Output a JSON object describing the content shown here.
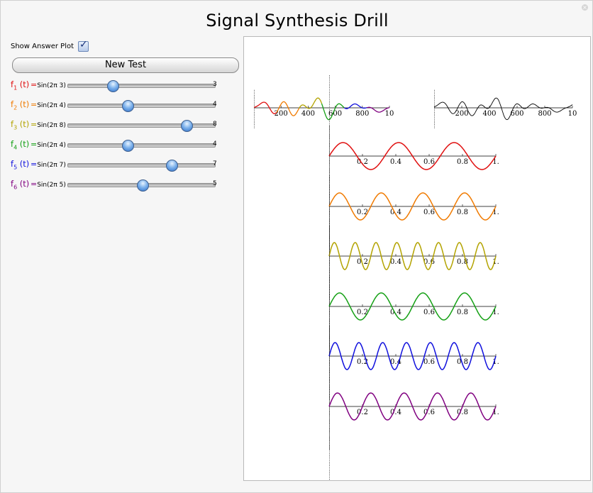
{
  "window": {
    "title": "Signal Synthesis Drill"
  },
  "controls": {
    "show_answer_label": "Show Answer Plot",
    "show_answer_checked": true,
    "new_test_label": "New Test"
  },
  "sliders": [
    {
      "label": "f",
      "sub": "1",
      "arg": "(t)",
      "formula": "Sin(2π  3)",
      "value": 3,
      "min": 0,
      "max": 10,
      "color": "#e01010"
    },
    {
      "label": "f",
      "sub": "2",
      "arg": "(t)",
      "formula": "Sin(2π  4)",
      "value": 4,
      "min": 0,
      "max": 10,
      "color": "#f07a00"
    },
    {
      "label": "f",
      "sub": "3",
      "arg": "(t)",
      "formula": "Sin(2π  8)",
      "value": 8,
      "min": 0,
      "max": 10,
      "color": "#b3a300"
    },
    {
      "label": "f",
      "sub": "4",
      "arg": "(t)",
      "formula": "Sin(2π  4)",
      "value": 4,
      "min": 0,
      "max": 10,
      "color": "#14a014"
    },
    {
      "label": "f",
      "sub": "5",
      "arg": "(t)",
      "formula": "Sin(2π  7)",
      "value": 7,
      "min": 0,
      "max": 10,
      "color": "#1010dd"
    },
    {
      "label": "f",
      "sub": "6",
      "arg": "(t)",
      "formula": "Sin(2π  5)",
      "value": 5,
      "min": 0,
      "max": 10,
      "color": "#800080"
    }
  ],
  "colors": {
    "f1": "#e01010",
    "f2": "#f07a00",
    "f3": "#b3a300",
    "f4": "#14a014",
    "f5": "#1010dd",
    "f6": "#800080",
    "answer": "#000000"
  },
  "equals_sign": "=",
  "chart_data": [
    {
      "type": "line",
      "ticks": [
        "200",
        "400",
        "600",
        "800",
        "10"
      ],
      "x_range": [
        0,
        1000
      ]
    },
    {
      "type": "line",
      "ticks": [
        "200",
        "400",
        "600",
        "800",
        "10"
      ],
      "x_range": [
        0,
        1000
      ]
    },
    {
      "type": "line",
      "frequency": 3,
      "ticks": [
        "0.2",
        "0.4",
        "0.6",
        "0.8",
        "1."
      ],
      "x_range": [
        0,
        1
      ],
      "y_range": [
        -1,
        1
      ]
    },
    {
      "type": "line",
      "frequency": 4,
      "ticks": [
        "0.2",
        "0.4",
        "0.6",
        "0.8",
        "1."
      ],
      "x_range": [
        0,
        1
      ],
      "y_range": [
        -1,
        1
      ]
    },
    {
      "type": "line",
      "frequency": 8,
      "ticks": [
        "0.2",
        "0.4",
        "0.6",
        "0.8",
        "1."
      ],
      "x_range": [
        0,
        1
      ],
      "y_range": [
        -1,
        1
      ]
    },
    {
      "type": "line",
      "frequency": 4,
      "ticks": [
        "0.2",
        "0.4",
        "0.6",
        "0.8",
        "1."
      ],
      "x_range": [
        0,
        1
      ],
      "y_range": [
        -1,
        1
      ]
    },
    {
      "type": "line",
      "frequency": 7,
      "ticks": [
        "0.2",
        "0.4",
        "0.6",
        "0.8",
        "1."
      ],
      "x_range": [
        0,
        1
      ],
      "y_range": [
        -1,
        1
      ]
    },
    {
      "type": "line",
      "frequency": 5,
      "ticks": [
        "0.2",
        "0.4",
        "0.6",
        "0.8",
        "1."
      ],
      "x_range": [
        0,
        1
      ],
      "y_range": [
        -1,
        1
      ]
    }
  ]
}
